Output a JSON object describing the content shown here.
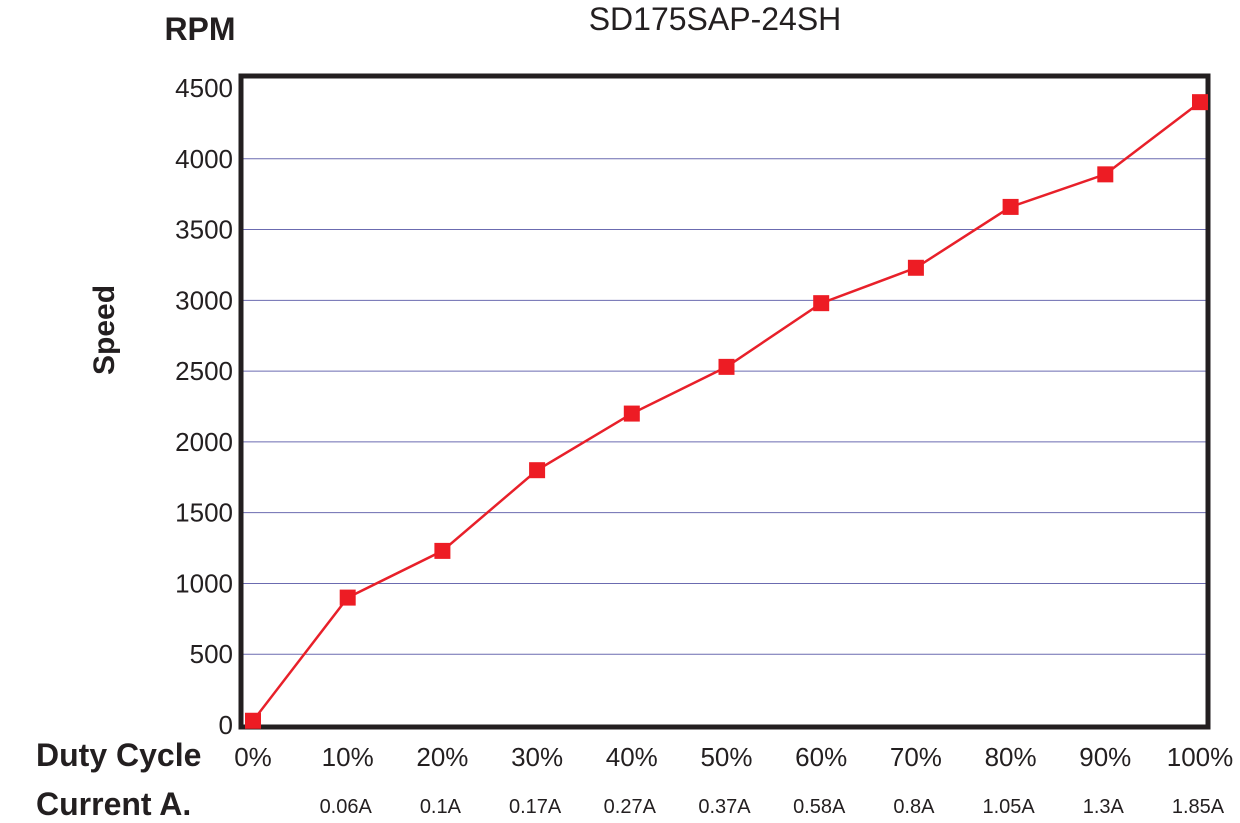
{
  "chart_data": {
    "type": "line",
    "title": "SD175SAP-24SH",
    "y_unit": "RPM",
    "ylabel": "Speed",
    "xlabel": "Duty Cycle",
    "secondary_row_label": "Current A.",
    "categories": [
      "0%",
      "10%",
      "20%",
      "30%",
      "40%",
      "50%",
      "60%",
      "70%",
      "80%",
      "90%",
      "100%"
    ],
    "current_labels": [
      "",
      "0.06A",
      "0.1A",
      "0.17A",
      "0.27A",
      "0.37A",
      "0.58A",
      "0.8A",
      "1.05A",
      "1.3A",
      "1.85A"
    ],
    "x": [
      0,
      10,
      20,
      30,
      40,
      50,
      60,
      70,
      80,
      90,
      100
    ],
    "series": [
      {
        "values": [
          30,
          900,
          1230,
          1800,
          2200,
          2530,
          2980,
          3230,
          3660,
          3890,
          4400
        ]
      }
    ],
    "ylim": [
      0,
      4500
    ],
    "yticks": [
      0,
      500,
      1000,
      1500,
      2000,
      2500,
      3000,
      3500,
      4000,
      4500
    ],
    "grid": true,
    "colors": {
      "line": "#e8202a",
      "marker": "#ed1c24",
      "grid": "#6b6bb0",
      "frame": "#231f20"
    }
  }
}
